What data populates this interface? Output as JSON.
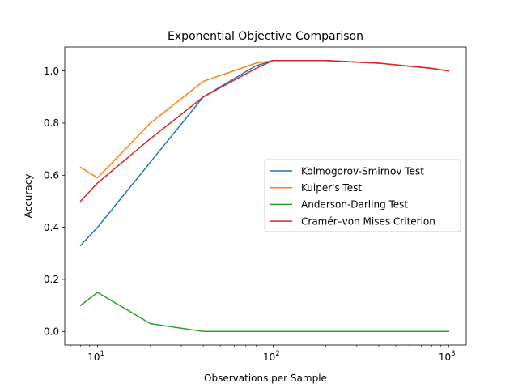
{
  "chart_data": {
    "type": "line",
    "title": "Exponential Objective Comparison",
    "xlabel": "Observations per Sample",
    "ylabel": "Accuracy",
    "xscale": "log",
    "xlim": [
      6.5,
      1260
    ],
    "ylim": [
      -0.052,
      1.092
    ],
    "x": [
      8,
      10,
      20,
      40,
      80,
      100,
      200,
      400,
      800,
      1000
    ],
    "x_ticks": [
      {
        "value": 10,
        "base": "10",
        "exp": "1"
      },
      {
        "value": 100,
        "base": "10",
        "exp": "2"
      },
      {
        "value": 1000,
        "base": "10",
        "exp": "3"
      }
    ],
    "y_ticks": [
      {
        "value": 0.0,
        "label": "0.0"
      },
      {
        "value": 0.2,
        "label": "0.2"
      },
      {
        "value": 0.4,
        "label": "0.4"
      },
      {
        "value": 0.6,
        "label": "0.6"
      },
      {
        "value": 0.8,
        "label": "0.8"
      },
      {
        "value": 1.0,
        "label": "1.0"
      }
    ],
    "series": [
      {
        "name": "Kolmogorov-Smirnov Test",
        "color": "#1f77b4",
        "values": [
          0.33,
          0.4,
          0.65,
          0.9,
          1.02,
          1.04,
          1.04,
          1.03,
          1.01,
          1.0
        ]
      },
      {
        "name": "Kuiper's Test",
        "color": "#ff7f0e",
        "values": [
          0.63,
          0.59,
          0.8,
          0.96,
          1.03,
          1.04,
          1.04,
          1.03,
          1.01,
          1.0
        ]
      },
      {
        "name": "Anderson-Darling Test",
        "color": "#2ca02c",
        "values": [
          0.1,
          0.15,
          0.03,
          0.0,
          0.0,
          0.0,
          0.0,
          0.0,
          0.0,
          0.0
        ]
      },
      {
        "name": "Cramér–von Mises Criterion",
        "color": "#d62728",
        "values": [
          0.5,
          0.57,
          0.74,
          0.9,
          1.01,
          1.04,
          1.04,
          1.03,
          1.01,
          1.0
        ]
      }
    ],
    "legend": "center-right",
    "grid": false
  }
}
